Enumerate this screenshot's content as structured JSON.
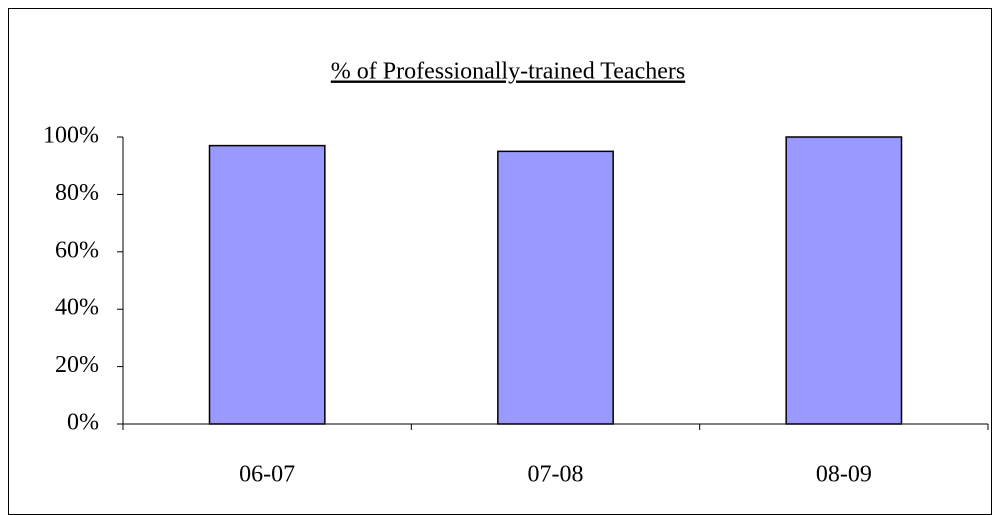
{
  "chart_data": {
    "type": "bar",
    "title": "% of Professionally-trained Teachers",
    "categories": [
      "06-07",
      "07-08",
      "08-09"
    ],
    "values": [
      97,
      95,
      100
    ],
    "color": "#9999ff",
    "ylim": [
      0,
      100
    ],
    "yticks": [
      {
        "value": 0,
        "label": "0%"
      },
      {
        "value": 20,
        "label": "20%"
      },
      {
        "value": 40,
        "label": "40%"
      },
      {
        "value": 60,
        "label": "60%"
      },
      {
        "value": 80,
        "label": "80%"
      },
      {
        "value": 100,
        "label": "100%"
      }
    ],
    "grid": false
  }
}
